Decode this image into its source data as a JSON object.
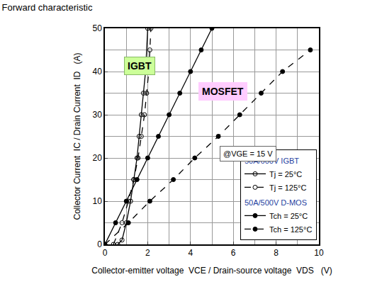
{
  "chart_data": {
    "type": "line",
    "title": "Forward characteristic",
    "x_label": "Collector-emitter voltage  VCE / Drain-source voltage  VDS   (V)",
    "y_label": "Collector Current  IC / Drain Current  ID   (A)",
    "xlim": [
      0,
      10
    ],
    "ylim": [
      0,
      50
    ],
    "xticks": [
      0,
      2,
      4,
      6,
      8,
      10
    ],
    "yticks": [
      0,
      10,
      20,
      30,
      40,
      50
    ],
    "grid": true,
    "legend": "lower right",
    "annotations": [
      "IGBT",
      "MOSFET",
      "@VGE = 15 V"
    ],
    "series": [
      {
        "group": "50A/600V IGBT",
        "name": "Tj = 25°C",
        "color": "#000000",
        "marker": "open circle",
        "line_style": "solid",
        "x": [
          0.6,
          0.8,
          1.0,
          1.2,
          1.35,
          1.5,
          1.6,
          1.7,
          1.8,
          1.9,
          2.0
        ],
        "values": [
          0,
          1,
          5,
          10,
          15,
          20,
          25,
          30,
          35,
          40,
          50
        ]
      },
      {
        "group": "50A/600V IGBT",
        "name": "Tj = 125°C",
        "color": "#000000",
        "marker": "open circle",
        "line_style": "dash",
        "x": [
          0.4,
          0.8,
          1.1,
          1.35,
          1.55,
          1.7,
          1.85,
          1.95,
          2.05,
          2.1,
          2.15
        ],
        "values": [
          0,
          5,
          10,
          15,
          20,
          25,
          30,
          35,
          40,
          45,
          50
        ]
      },
      {
        "group": "50A/500V D-MOS",
        "name": "Tch = 25°C",
        "color": "#000000",
        "marker": "circle",
        "line_style": "solid",
        "x": [
          0,
          0.5,
          1.0,
          1.5,
          2.0,
          2.5,
          3.0,
          3.5,
          4.0,
          4.5,
          5.0
        ],
        "values": [
          0,
          5,
          10,
          15,
          20,
          25,
          30,
          35,
          40,
          45,
          50
        ]
      },
      {
        "group": "50A/500V D-MOS",
        "name": "Tch = 125°C",
        "color": "#000000",
        "marker": "circle",
        "line_style": "dash",
        "x": [
          0,
          1.1,
          2.1,
          3.2,
          4.2,
          5.3,
          6.3,
          7.3,
          8.3,
          9.6
        ],
        "values": [
          0,
          5,
          10,
          15,
          20,
          25,
          30,
          35,
          40,
          45
        ]
      }
    ]
  }
}
